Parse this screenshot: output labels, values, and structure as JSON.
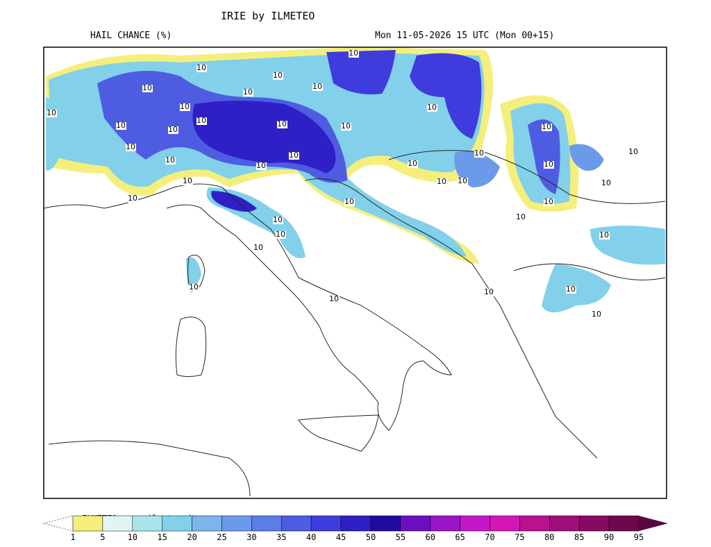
{
  "header": {
    "title": "IRIE by ILMETEO",
    "variable": "HAIL CHANCE (%)",
    "valid_time": "Mon 11-05-2026 15 UTC (Mon 00+15)"
  },
  "map": {
    "contour_labels": [
      "10",
      "10",
      "10",
      "10",
      "10",
      "10",
      "10",
      "10",
      "10",
      "10",
      "10",
      "10",
      "10",
      "10",
      "10",
      "10",
      "10",
      "10",
      "10",
      "10",
      "10",
      "10",
      "10",
      "10",
      "10",
      "10",
      "10",
      "10",
      "10",
      "10",
      "10",
      "10",
      "10",
      "10",
      "10",
      "10",
      "10",
      "10",
      "10",
      "10"
    ]
  },
  "colorbar": {
    "credit": "ILMETEO: www.ilmeteo.it",
    "ticks": [
      1,
      5,
      10,
      15,
      20,
      25,
      30,
      35,
      40,
      45,
      50,
      55,
      60,
      65,
      70,
      75,
      80,
      85,
      90,
      95
    ],
    "colors": [
      "#f4ef7c",
      "#dff6f4",
      "#a9e4ec",
      "#82d0ea",
      "#7ab6ec",
      "#6c9aea",
      "#5c7ce6",
      "#4e5ce2",
      "#3e3cdc",
      "#2e20c6",
      "#1e0c9e",
      "#6a10c2",
      "#9a14c8",
      "#c418c8",
      "#d416b4",
      "#b8128e",
      "#9e0e78",
      "#860a62",
      "#6e084e"
    ],
    "over_color": "#5a0640"
  }
}
